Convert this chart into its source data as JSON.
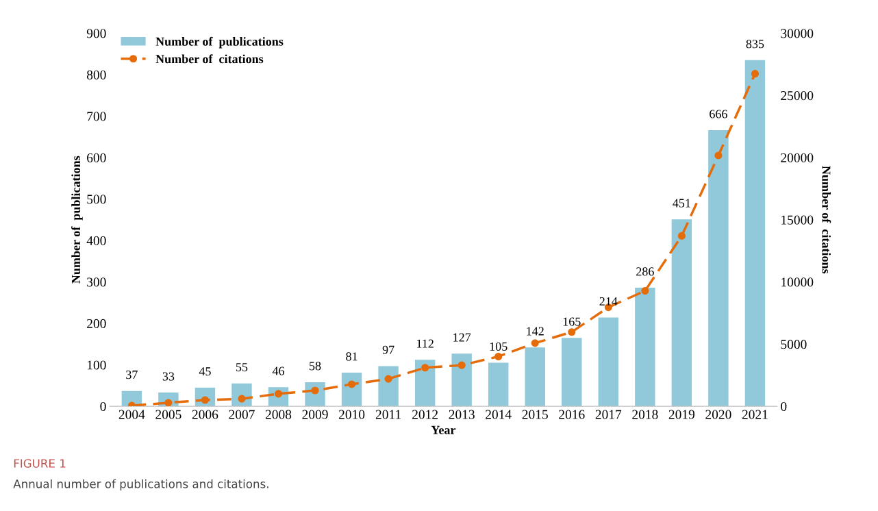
{
  "chart_data": {
    "type": "bar",
    "xlabel": "Year",
    "ylabel": "Number of  publications",
    "y2label": "Number of  citations",
    "categories": [
      "2004",
      "2005",
      "2006",
      "2007",
      "2008",
      "2009",
      "2010",
      "2011",
      "2012",
      "2013",
      "2014",
      "2015",
      "2016",
      "2017",
      "2018",
      "2019",
      "2020",
      "2021"
    ],
    "series": [
      {
        "name": "Number of  publications",
        "type": "bar",
        "color": "#92c9da",
        "data_labels": true,
        "values": [
          37,
          33,
          45,
          55,
          46,
          58,
          81,
          97,
          112,
          127,
          105,
          142,
          165,
          214,
          286,
          451,
          666,
          835
        ]
      },
      {
        "name": "Number of  citations",
        "type": "line",
        "axis": "y2",
        "color": "#e46c0a",
        "marker": "circle",
        "line_style": "dashed",
        "values": [
          50,
          280,
          500,
          600,
          1000,
          1270,
          1770,
          2200,
          3100,
          3300,
          4000,
          5080,
          5970,
          7960,
          9280,
          13700,
          20170,
          26740
        ]
      }
    ],
    "ylim": [
      0,
      900
    ],
    "yticks": [
      0,
      100,
      200,
      300,
      400,
      500,
      600,
      700,
      800,
      900
    ],
    "y2lim": [
      0,
      30000
    ],
    "y2ticks": [
      0,
      5000,
      10000,
      15000,
      20000,
      25000,
      30000
    ],
    "grid": false,
    "legend": "top left",
    "annotations": [
      "FIGURE 1",
      "Annual number of publications and citations."
    ]
  }
}
